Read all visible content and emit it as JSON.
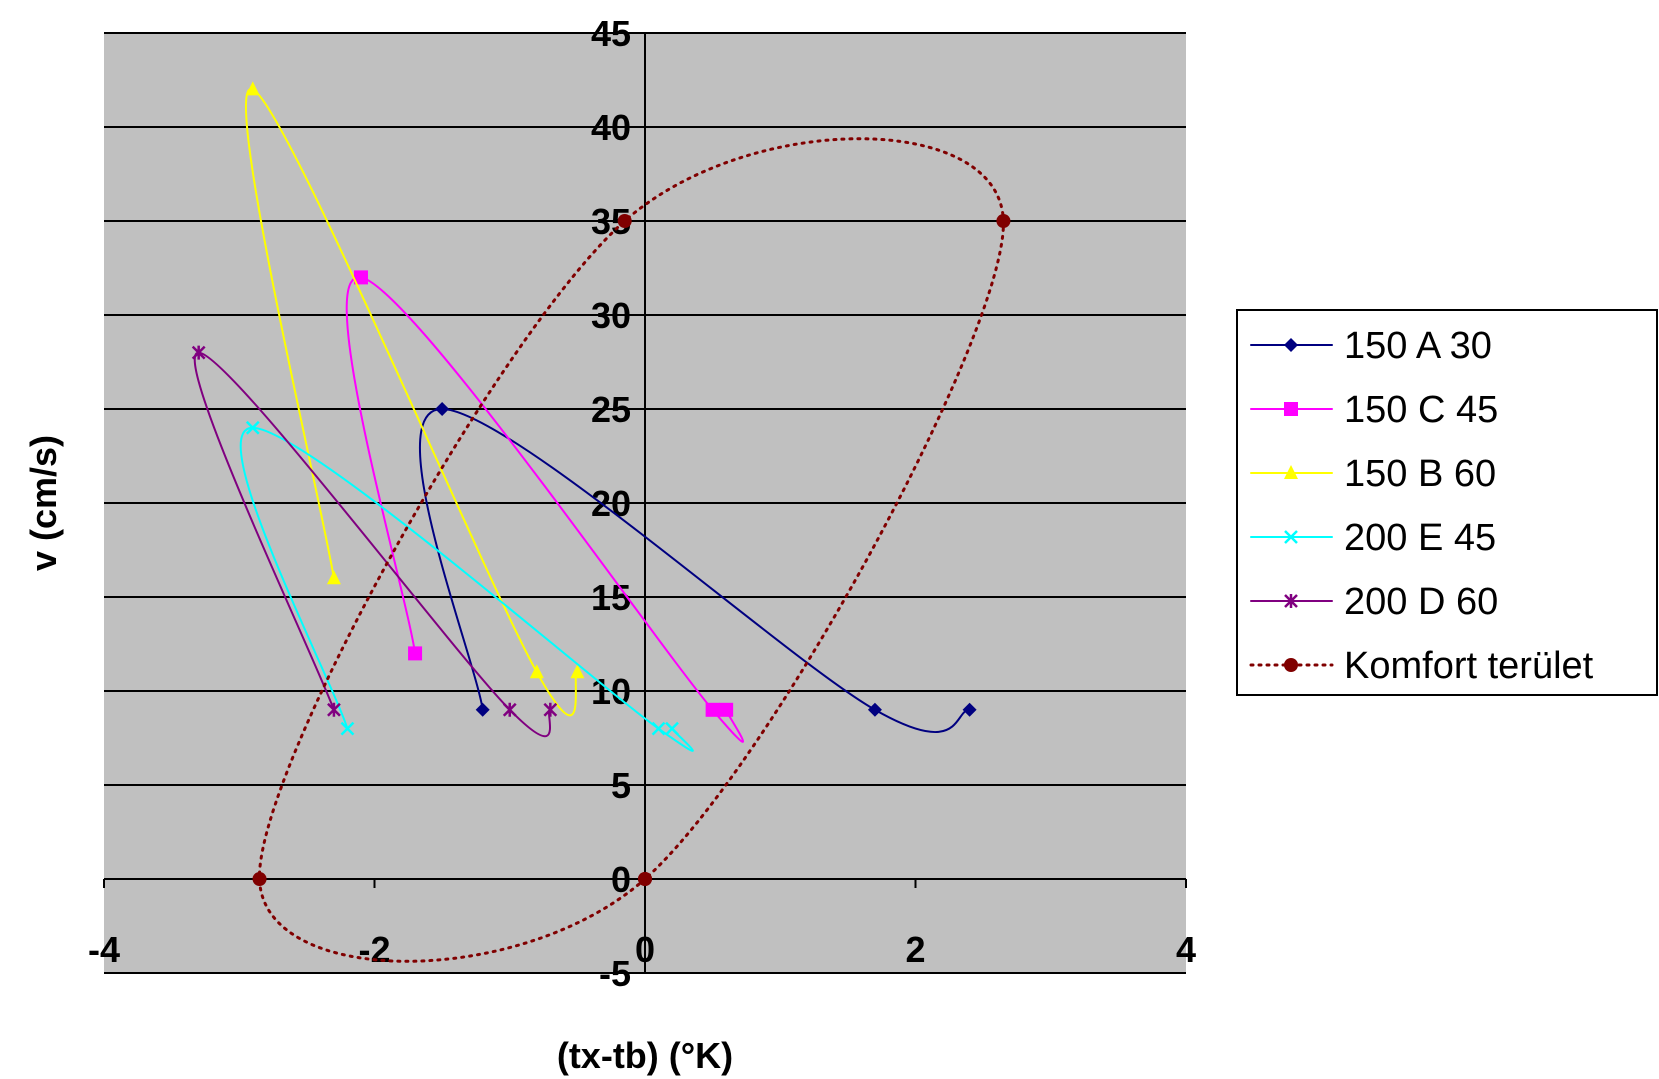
{
  "chart_data": {
    "type": "scatter",
    "title": "",
    "xlabel": "(tx-tb) (°K)",
    "ylabel": "v (cm/s)",
    "xlim": [
      -4,
      4
    ],
    "ylim": [
      -5,
      45
    ],
    "x_ticks": [
      -4,
      -2,
      0,
      2,
      4
    ],
    "y_ticks": [
      -5,
      0,
      5,
      10,
      15,
      20,
      25,
      30,
      35,
      40,
      45
    ],
    "x_tick_labels": [
      "-4",
      "-2",
      "0",
      "2",
      "4"
    ],
    "y_tick_labels": [
      "-5",
      "0",
      "5",
      "10",
      "15",
      "20",
      "25",
      "30",
      "35",
      "40",
      "45"
    ],
    "grid": "horizontal",
    "plot_background": "#c0c0c0",
    "legend_position": "right",
    "series": [
      {
        "name": "150 A 30",
        "color": "#000080",
        "marker": "diamond",
        "line": "solid",
        "points": [
          [
            -1.2,
            9
          ],
          [
            -1.5,
            25
          ],
          [
            1.7,
            9
          ],
          [
            2.4,
            9
          ]
        ]
      },
      {
        "name": "150 C 45",
        "color": "#ff00ff",
        "marker": "square",
        "line": "solid",
        "points": [
          [
            -1.7,
            12
          ],
          [
            -2.1,
            32
          ],
          [
            0.5,
            9
          ],
          [
            0.6,
            9
          ]
        ]
      },
      {
        "name": "150 B 60",
        "color": "#ffff00",
        "marker": "triangle",
        "line": "solid",
        "points": [
          [
            -2.3,
            16
          ],
          [
            -2.9,
            42
          ],
          [
            -0.8,
            11
          ],
          [
            -0.5,
            11
          ]
        ]
      },
      {
        "name": "200 E 45",
        "color": "#00ffff",
        "marker": "x",
        "line": "solid",
        "points": [
          [
            -2.2,
            8
          ],
          [
            -2.9,
            24
          ],
          [
            0.1,
            8
          ],
          [
            0.2,
            8
          ]
        ]
      },
      {
        "name": "200 D 60",
        "color": "#800080",
        "marker": "star",
        "line": "solid",
        "points": [
          [
            -2.3,
            9
          ],
          [
            -3.3,
            28
          ],
          [
            -1.0,
            9
          ],
          [
            -0.7,
            9
          ]
        ]
      },
      {
        "name": "Komfort terület",
        "color": "#800000",
        "marker": "circle",
        "line": "dotted",
        "points": [
          [
            0,
            0
          ],
          [
            -2.85,
            0
          ],
          [
            -0.15,
            35
          ],
          [
            2.65,
            35
          ],
          [
            0,
            0
          ]
        ]
      }
    ]
  }
}
